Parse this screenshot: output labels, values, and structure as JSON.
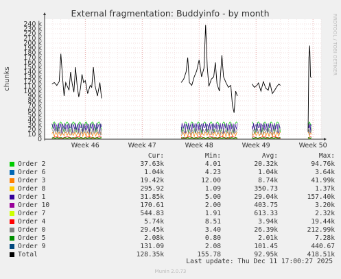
{
  "chart_data": {
    "type": "line",
    "title": "External fragmentation: Buddyinfo - by month",
    "ylabel": "chunks",
    "ylim": [
      0,
      250000
    ],
    "yticks": [
      {
        "v": 0,
        "label": "0"
      },
      {
        "v": 10000,
        "label": "10 k"
      },
      {
        "v": 20000,
        "label": "20 k"
      },
      {
        "v": 30000,
        "label": "30 k"
      },
      {
        "v": 40000,
        "label": "40 k"
      },
      {
        "v": 50000,
        "label": "50 k"
      },
      {
        "v": 60000,
        "label": "60 k"
      },
      {
        "v": 70000,
        "label": "70 k"
      },
      {
        "v": 80000,
        "label": "80 k"
      },
      {
        "v": 90000,
        "label": "90 k"
      },
      {
        "v": 100000,
        "label": "100 k"
      },
      {
        "v": 110000,
        "label": "110 k"
      },
      {
        "v": 120000,
        "label": "120 k"
      },
      {
        "v": 130000,
        "label": "130 k"
      },
      {
        "v": 140000,
        "label": "140 k"
      },
      {
        "v": 150000,
        "label": "150 k"
      },
      {
        "v": 160000,
        "label": "160 k"
      },
      {
        "v": 170000,
        "label": "170 k"
      },
      {
        "v": 180000,
        "label": "180 k"
      },
      {
        "v": 190000,
        "label": "190 k"
      },
      {
        "v": 200000,
        "label": "200 k"
      },
      {
        "v": 210000,
        "label": "210 k"
      },
      {
        "v": 220000,
        "label": "220 k"
      },
      {
        "v": 230000,
        "label": "230 k"
      },
      {
        "v": 240000,
        "label": "240 k"
      }
    ],
    "x_domain": [
      0,
      34
    ],
    "xticks": [
      {
        "v": 5,
        "label": "Week 46"
      },
      {
        "v": 12,
        "label": "Week 47"
      },
      {
        "v": 19,
        "label": "Week 48"
      },
      {
        "v": 26,
        "label": "Week 49"
      },
      {
        "v": 33,
        "label": "Week 50"
      }
    ],
    "total_segments": [
      [
        [
          0.9,
          115000
        ],
        [
          1.2,
          118000
        ],
        [
          1.5,
          112000
        ],
        [
          1.8,
          120000
        ],
        [
          2.0,
          178000
        ],
        [
          2.2,
          130000
        ],
        [
          2.4,
          90000
        ],
        [
          2.6,
          118000
        ],
        [
          2.8,
          110000
        ],
        [
          3.0,
          102000
        ],
        [
          3.2,
          140000
        ],
        [
          3.4,
          115000
        ],
        [
          3.6,
          98000
        ],
        [
          3.8,
          150000
        ],
        [
          4.0,
          112000
        ],
        [
          4.2,
          88000
        ],
        [
          4.4,
          105000
        ],
        [
          4.6,
          135000
        ],
        [
          4.8,
          118000
        ],
        [
          5.0,
          122000
        ],
        [
          5.3,
          95000
        ],
        [
          5.6,
          112000
        ],
        [
          5.8,
          108000
        ],
        [
          6.0,
          150000
        ],
        [
          6.2,
          112000
        ],
        [
          6.5,
          90000
        ],
        [
          6.8,
          118000
        ],
        [
          7.0,
          85000
        ]
      ],
      [
        [
          16.8,
          118000
        ],
        [
          17.1,
          125000
        ],
        [
          17.4,
          140000
        ],
        [
          17.6,
          170000
        ],
        [
          17.8,
          118000
        ],
        [
          18.1,
          112000
        ],
        [
          18.4,
          130000
        ],
        [
          18.7,
          142000
        ],
        [
          19.0,
          165000
        ],
        [
          19.3,
          130000
        ],
        [
          19.6,
          148000
        ],
        [
          19.8,
          238000
        ],
        [
          20.0,
          150000
        ],
        [
          20.2,
          110000
        ],
        [
          20.5,
          125000
        ],
        [
          20.8,
          130000
        ],
        [
          21.0,
          160000
        ],
        [
          21.2,
          115000
        ],
        [
          21.5,
          100000
        ],
        [
          21.8,
          175000
        ],
        [
          22.0,
          130000
        ],
        [
          22.3,
          118000
        ],
        [
          22.6,
          108000
        ],
        [
          22.9,
          112000
        ],
        [
          23.1,
          70000
        ],
        [
          23.3,
          55000
        ],
        [
          23.5,
          100000
        ],
        [
          23.7,
          90000
        ]
      ],
      [
        [
          25.5,
          115000
        ],
        [
          25.8,
          108000
        ],
        [
          26.1,
          112000
        ],
        [
          26.3,
          117000
        ],
        [
          26.6,
          100000
        ],
        [
          26.9,
          120000
        ],
        [
          27.2,
          106000
        ],
        [
          27.5,
          102000
        ],
        [
          27.7,
          118000
        ],
        [
          28.0,
          95000
        ],
        [
          28.3,
          102000
        ],
        [
          28.5,
          108000
        ],
        [
          28.8,
          115000
        ],
        [
          29.0,
          112000
        ]
      ],
      [
        [
          32.4,
          15000
        ],
        [
          32.5,
          170000
        ],
        [
          32.6,
          195000
        ],
        [
          32.7,
          130000
        ],
        [
          32.8,
          128000
        ]
      ]
    ],
    "series": [
      {
        "name": "Order 2",
        "color": "#00cc00",
        "cur": "37.63k",
        "min": "4.01",
        "avg": "20.32k",
        "max": "94.76k"
      },
      {
        "name": "Order 6",
        "color": "#0066b3",
        "cur": "1.04k",
        "min": "4.23",
        "avg": "1.04k",
        "max": "3.64k"
      },
      {
        "name": "Order 3",
        "color": "#ff8000",
        "cur": "19.42k",
        "min": "12.00",
        "avg": "8.74k",
        "max": "41.99k"
      },
      {
        "name": "Order 8",
        "color": "#ffcc00",
        "cur": "295.92",
        "min": "1.09",
        "avg": "350.73",
        "max": "1.37k"
      },
      {
        "name": "Order 1",
        "color": "#330099",
        "cur": "31.85k",
        "min": "5.00",
        "avg": "29.04k",
        "max": "157.40k"
      },
      {
        "name": "Order 10",
        "color": "#990099",
        "cur": "170.61",
        "min": "2.00",
        "avg": "403.75",
        "max": "3.20k"
      },
      {
        "name": "Order 7",
        "color": "#ccff00",
        "cur": "544.83",
        "min": "1.91",
        "avg": "613.33",
        "max": "2.32k"
      },
      {
        "name": "Order 4",
        "color": "#ff0000",
        "cur": "5.74k",
        "min": "8.51",
        "avg": "3.94k",
        "max": "19.44k"
      },
      {
        "name": "Order 0",
        "color": "#808080",
        "cur": "29.45k",
        "min": "3.40",
        "avg": "26.39k",
        "max": "212.99k"
      },
      {
        "name": "Order 5",
        "color": "#008f00",
        "cur": "2.08k",
        "min": "0.80",
        "avg": "2.01k",
        "max": "7.28k"
      },
      {
        "name": "Order 9",
        "color": "#00487d",
        "cur": "131.09",
        "min": "2.08",
        "avg": "101.45",
        "max": "440.67"
      },
      {
        "name": "Total",
        "color": "#000000",
        "cur": "128.35k",
        "min": "155.78",
        "avg": "92.95k",
        "max": "418.51k"
      }
    ]
  },
  "legend_headers": {
    "cur": "Cur:",
    "min": "Min:",
    "avg": "Avg:",
    "max": "Max:"
  },
  "last_update": "Last update: Thu Dec 11 17:00:27 2025",
  "footer": "Munin 2.0.73",
  "side_label": "RRDTOOL / TOBI OETIKER"
}
